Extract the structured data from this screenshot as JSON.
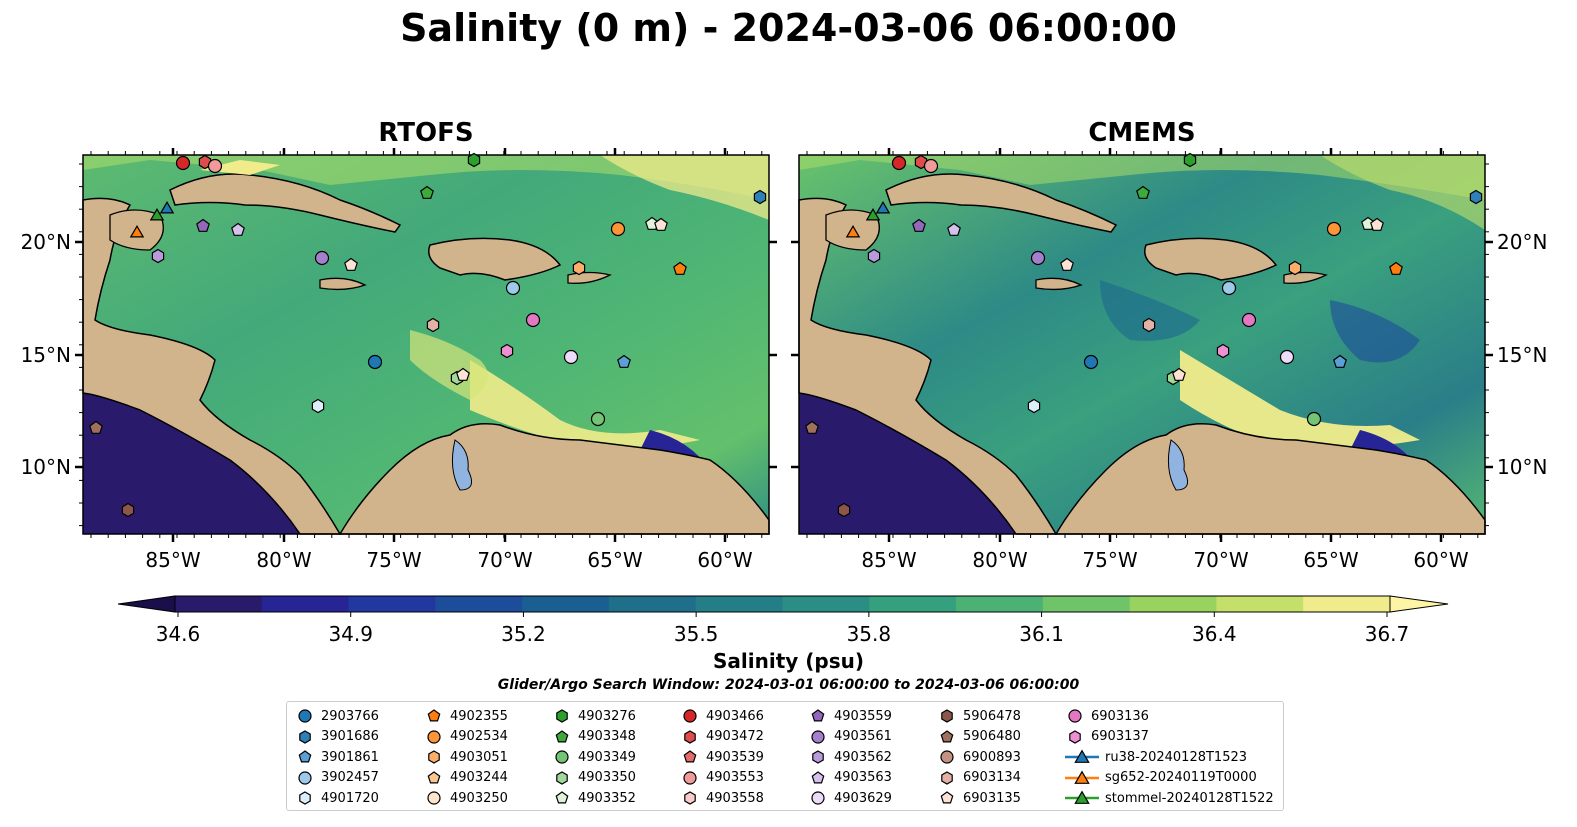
{
  "title": "Salinity (0 m) - 2024-03-06 06:00:00",
  "panels": [
    {
      "title": "RTOFS"
    },
    {
      "title": "CMEMS"
    }
  ],
  "axes": {
    "lon_ticks": [
      "85°W",
      "80°W",
      "75°W",
      "70°W",
      "65°W",
      "60°W"
    ],
    "lat_ticks": [
      "20°N",
      "15°N",
      "10°N"
    ]
  },
  "colorbar": {
    "label": "Salinity (psu)",
    "ticks": [
      "34.6",
      "34.9",
      "35.2",
      "35.5",
      "35.8",
      "36.1",
      "36.4",
      "36.7"
    ],
    "min": 34.6,
    "max": 36.7,
    "colors": [
      "#2a1a6b",
      "#272596",
      "#2238a1",
      "#1c4d9b",
      "#1a5f92",
      "#1f6f8b",
      "#247e87",
      "#2a8e84",
      "#35a07d",
      "#4cb174",
      "#6fc46a",
      "#98d35f",
      "#c4e06b",
      "#f1ec8b"
    ]
  },
  "search_window": "Glider/Argo Search Window: 2024-03-01 06:00:00 to 2024-03-06 06:00:00",
  "legend": [
    {
      "label": "2903766",
      "marker": "circle",
      "color": "#1f77b4"
    },
    {
      "label": "3901686",
      "marker": "hexagon",
      "color": "#2f7fb8"
    },
    {
      "label": "3901861",
      "marker": "pentagon",
      "color": "#5aa0d6"
    },
    {
      "label": "3902457",
      "marker": "circle",
      "color": "#9ecae9"
    },
    {
      "label": "4901720",
      "marker": "hexagon",
      "color": "#dceefa"
    },
    {
      "label": "4902355",
      "marker": "pentagon",
      "color": "#ff7f0e"
    },
    {
      "label": "4902534",
      "marker": "circle",
      "color": "#fd9538"
    },
    {
      "label": "4903051",
      "marker": "hexagon",
      "color": "#fdae6b"
    },
    {
      "label": "4903244",
      "marker": "pentagon",
      "color": "#fdc691"
    },
    {
      "label": "4903250",
      "marker": "circle",
      "color": "#fee6ce"
    },
    {
      "label": "4903276",
      "marker": "hexagon",
      "color": "#2ca02c"
    },
    {
      "label": "4903348",
      "marker": "pentagon",
      "color": "#3cab3c"
    },
    {
      "label": "4903349",
      "marker": "circle",
      "color": "#74c476"
    },
    {
      "label": "4903350",
      "marker": "hexagon",
      "color": "#a1d99b"
    },
    {
      "label": "4903352",
      "marker": "pentagon",
      "color": "#dff3da"
    },
    {
      "label": "4903466",
      "marker": "circle",
      "color": "#d62728"
    },
    {
      "label": "4903472",
      "marker": "hexagon",
      "color": "#de4c4c"
    },
    {
      "label": "4903539",
      "marker": "pentagon",
      "color": "#e66a6a"
    },
    {
      "label": "4903553",
      "marker": "circle",
      "color": "#f09a9a"
    },
    {
      "label": "4903558",
      "marker": "hexagon",
      "color": "#fbcaca"
    },
    {
      "label": "4903559",
      "marker": "pentagon",
      "color": "#9467bd"
    },
    {
      "label": "4903561",
      "marker": "circle",
      "color": "#a37fcc"
    },
    {
      "label": "4903562",
      "marker": "hexagon",
      "color": "#b89bdb"
    },
    {
      "label": "4903563",
      "marker": "pentagon",
      "color": "#d4c2ec"
    },
    {
      "label": "4903629",
      "marker": "circle",
      "color": "#ecdcf9"
    },
    {
      "label": "5906478",
      "marker": "hexagon",
      "color": "#8c564b"
    },
    {
      "label": "5906480",
      "marker": "pentagon",
      "color": "#a0705f"
    },
    {
      "label": "6900893",
      "marker": "circle",
      "color": "#c49283"
    },
    {
      "label": "6903134",
      "marker": "hexagon",
      "color": "#e4b2a5"
    },
    {
      "label": "6903135",
      "marker": "pentagon",
      "color": "#fde2d6"
    },
    {
      "label": "6903136",
      "marker": "circle",
      "color": "#e377c2"
    },
    {
      "label": "6903137",
      "marker": "hexagon",
      "color": "#ee8fd1"
    },
    {
      "label": "ru38-20240128T1523",
      "marker": "triangle-line",
      "color": "#1f77b4"
    },
    {
      "label": "sg652-20240119T0000",
      "marker": "triangle-line",
      "color": "#ff7f0e"
    },
    {
      "label": "stommel-20240128T1522",
      "marker": "triangle-line",
      "color": "#2ca02c"
    }
  ]
}
